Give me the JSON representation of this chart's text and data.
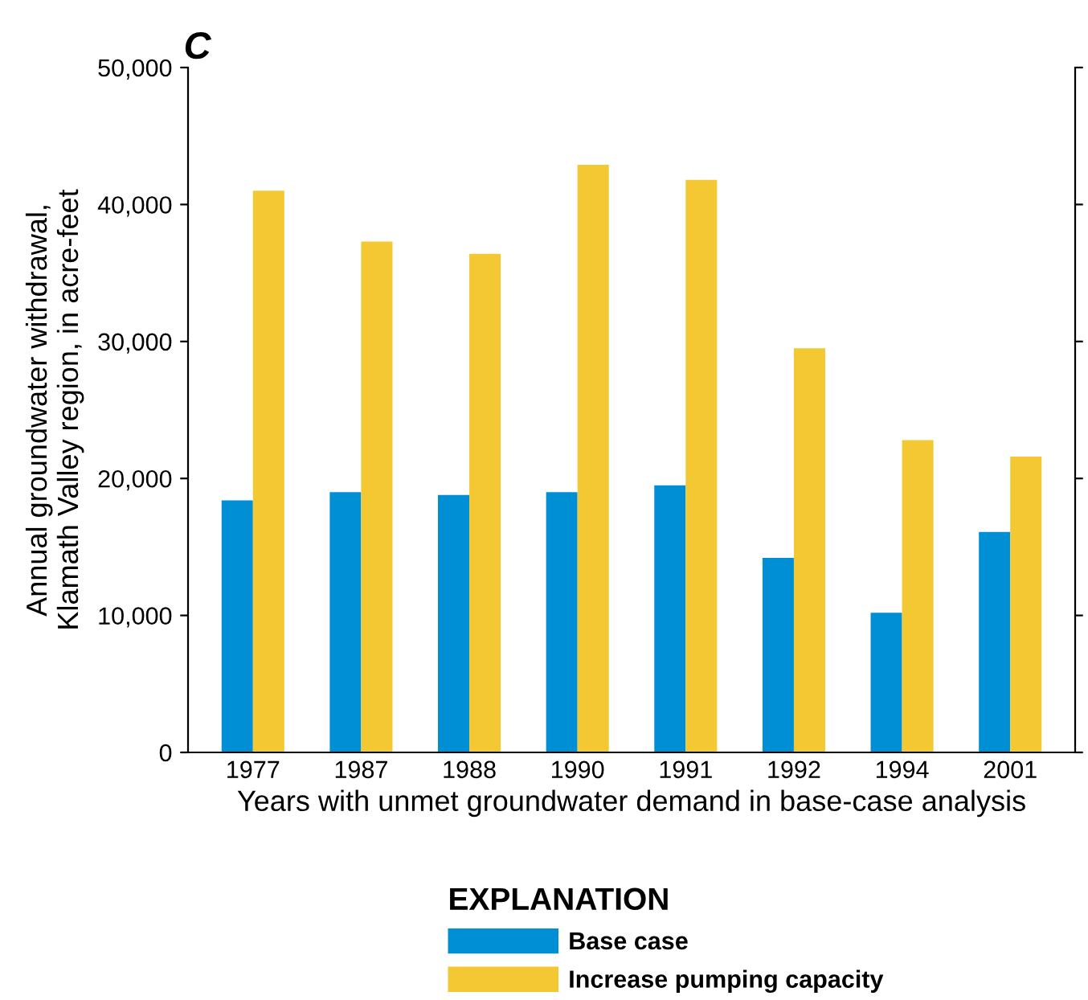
{
  "chart_data": {
    "type": "bar",
    "title": "C",
    "xlabel": "Years with unmet groundwater demand in base-case analysis",
    "ylabel": "Annual groundwater withdrawal,\nKlamath Valley region, in acre-feet",
    "legend_title": "EXPLANATION",
    "categories": [
      "1977",
      "1987",
      "1988",
      "1990",
      "1991",
      "1992",
      "1994",
      "2001"
    ],
    "series": [
      {
        "name": "Base case",
        "color": "#008fd5",
        "values": [
          18400,
          19000,
          18800,
          19000,
          19500,
          14200,
          10200,
          16100
        ]
      },
      {
        "name": "Increase pumping capacity",
        "color": "#f3c832",
        "values": [
          41000,
          37300,
          36400,
          42900,
          41800,
          29500,
          22800,
          21600
        ]
      }
    ],
    "ylim": [
      0,
      50000
    ],
    "yticks": [
      {
        "value": 0,
        "label": "0"
      },
      {
        "value": 10000,
        "label": "10,000"
      },
      {
        "value": 20000,
        "label": "20,000"
      },
      {
        "value": 30000,
        "label": "30,000"
      },
      {
        "value": 40000,
        "label": "40,000"
      },
      {
        "value": 50000,
        "label": "50,000"
      }
    ],
    "grid": false,
    "legend": "bottom"
  }
}
